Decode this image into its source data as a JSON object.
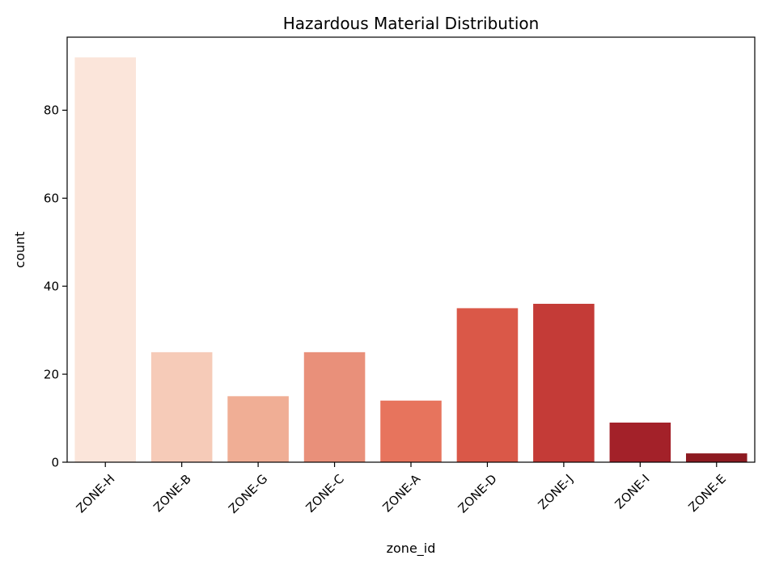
{
  "chart_data": {
    "type": "bar",
    "title": "Hazardous Material Distribution",
    "xlabel": "zone_id",
    "ylabel": "count",
    "categories": [
      "ZONE-H",
      "ZONE-B",
      "ZONE-G",
      "ZONE-C",
      "ZONE-A",
      "ZONE-D",
      "ZONE-J",
      "ZONE-I",
      "ZONE-E"
    ],
    "values": [
      92,
      25,
      15,
      25,
      14,
      35,
      36,
      9,
      2
    ],
    "colors": [
      "#fbe5da",
      "#f6cbb8",
      "#f0ae95",
      "#e9907a",
      "#e7745d",
      "#da5848",
      "#c43b37",
      "#a32129",
      "#8d1a21"
    ],
    "ylim": [
      0,
      96.6
    ],
    "yticks": [
      0,
      20,
      40,
      60,
      80
    ],
    "grid": false,
    "legend": "none"
  }
}
